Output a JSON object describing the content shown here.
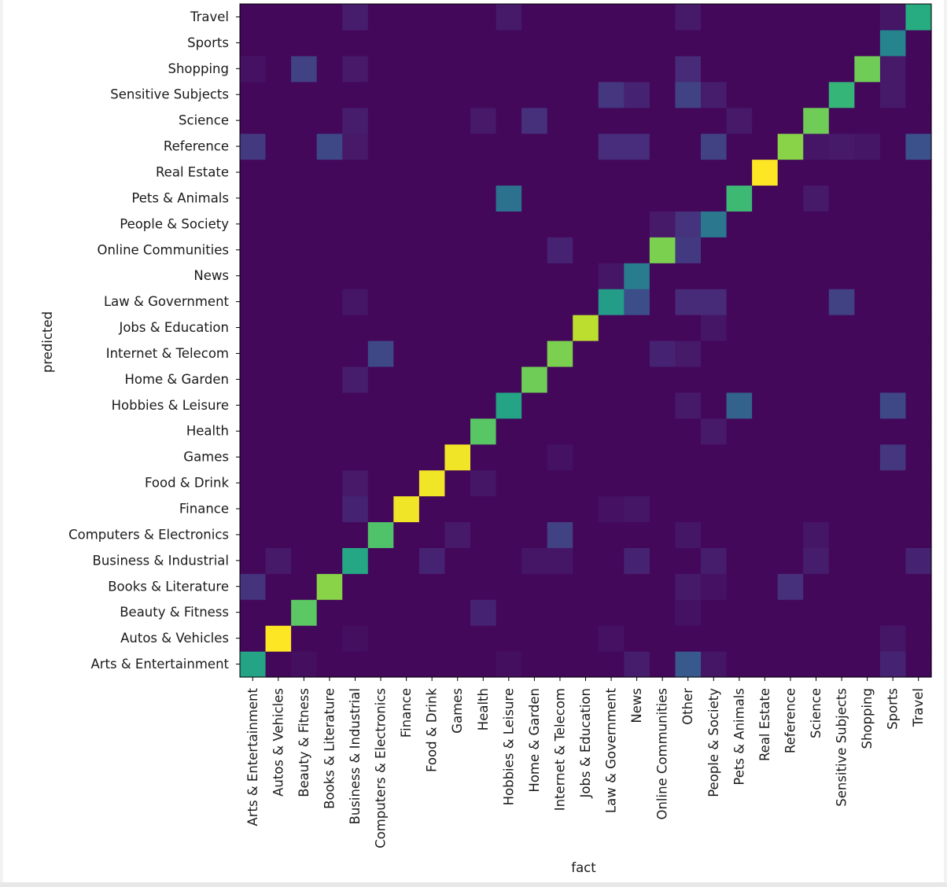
{
  "chart_data": {
    "type": "heatmap",
    "title": "",
    "xlabel": "fact",
    "ylabel": "predicted",
    "colormap": "viridis",
    "colormap_stops": [
      "#440154",
      "#472c7a",
      "#3b518b",
      "#2c718e",
      "#21908d",
      "#27ad81",
      "#5cc863",
      "#aadc32",
      "#fde725"
    ],
    "colorbar": false,
    "x_categories": [
      "Arts & Entertainment",
      "Autos & Vehicles",
      "Beauty & Fitness",
      "Books & Literature",
      "Business & Industrial",
      "Computers & Electronics",
      "Finance",
      "Food & Drink",
      "Games",
      "Health",
      "Hobbies & Leisure",
      "Home & Garden",
      "Internet & Telecom",
      "Jobs & Education",
      "Law & Government",
      "News",
      "Online Communities",
      "Other",
      "People & Society",
      "Pets & Animals",
      "Real Estate",
      "Reference",
      "Science",
      "Sensitive Subjects",
      "Shopping",
      "Sports",
      "Travel"
    ],
    "y_categories": [
      "Arts & Entertainment",
      "Autos & Vehicles",
      "Beauty & Fitness",
      "Books & Literature",
      "Business & Industrial",
      "Computers & Electronics",
      "Finance",
      "Food & Drink",
      "Games",
      "Health",
      "Hobbies & Leisure",
      "Home & Garden",
      "Internet & Telecom",
      "Jobs & Education",
      "Law & Government",
      "News",
      "Online Communities",
      "People & Society",
      "Pets & Animals",
      "Real Estate",
      "Reference",
      "Science",
      "Sensitive Subjects",
      "Shopping",
      "Sports",
      "Travel"
    ],
    "value_range": [
      0,
      1
    ],
    "base_value": 0.02,
    "cells": [
      [
        "Arts & Entertainment",
        "Arts & Entertainment",
        0.58
      ],
      [
        "Arts & Entertainment",
        "News",
        0.08
      ],
      [
        "Arts & Entertainment",
        "Other",
        0.28
      ],
      [
        "Arts & Entertainment",
        "People & Society",
        0.06
      ],
      [
        "Arts & Entertainment",
        "Sports",
        0.1
      ],
      [
        "Arts & Entertainment",
        "Beauty & Fitness",
        0.04
      ],
      [
        "Arts & Entertainment",
        "Hobbies & Leisure",
        0.04
      ],
      [
        "Autos & Vehicles",
        "Autos & Vehicles",
        1.0
      ],
      [
        "Autos & Vehicles",
        "Business & Industrial",
        0.04
      ],
      [
        "Autos & Vehicles",
        "Law & Government",
        0.05
      ],
      [
        "Autos & Vehicles",
        "Sports",
        0.06
      ],
      [
        "Beauty & Fitness",
        "Beauty & Fitness",
        0.75
      ],
      [
        "Beauty & Fitness",
        "Health",
        0.1
      ],
      [
        "Beauty & Fitness",
        "Other",
        0.05
      ],
      [
        "Books & Literature",
        "Books & Literature",
        0.82
      ],
      [
        "Books & Literature",
        "Arts & Entertainment",
        0.15
      ],
      [
        "Books & Literature",
        "Reference",
        0.14
      ],
      [
        "Books & Literature",
        "Other",
        0.07
      ],
      [
        "Books & Literature",
        "People & Society",
        0.05
      ],
      [
        "Business & Industrial",
        "Business & Industrial",
        0.6
      ],
      [
        "Business & Industrial",
        "Autos & Vehicles",
        0.07
      ],
      [
        "Business & Industrial",
        "Food & Drink",
        0.1
      ],
      [
        "Business & Industrial",
        "News",
        0.1
      ],
      [
        "Business & Industrial",
        "People & Society",
        0.08
      ],
      [
        "Business & Industrial",
        "Science",
        0.08
      ],
      [
        "Business & Industrial",
        "Travel",
        0.1
      ],
      [
        "Business & Industrial",
        "Home & Garden",
        0.06
      ],
      [
        "Business & Industrial",
        "Internet & Telecom",
        0.06
      ],
      [
        "Computers & Electronics",
        "Computers & Electronics",
        0.72
      ],
      [
        "Computers & Electronics",
        "Internet & Telecom",
        0.2
      ],
      [
        "Computers & Electronics",
        "Games",
        0.07
      ],
      [
        "Computers & Electronics",
        "Other",
        0.06
      ],
      [
        "Computers & Electronics",
        "Science",
        0.06
      ],
      [
        "Finance",
        "Finance",
        0.98
      ],
      [
        "Finance",
        "Business & Industrial",
        0.1
      ],
      [
        "Finance",
        "Law & Government",
        0.05
      ],
      [
        "Finance",
        "News",
        0.06
      ],
      [
        "Food & Drink",
        "Food & Drink",
        0.98
      ],
      [
        "Food & Drink",
        "Business & Industrial",
        0.07
      ],
      [
        "Food & Drink",
        "Health",
        0.06
      ],
      [
        "Games",
        "Games",
        0.98
      ],
      [
        "Games",
        "Sports",
        0.16
      ],
      [
        "Games",
        "Internet & Telecom",
        0.05
      ],
      [
        "Health",
        "Health",
        0.74
      ],
      [
        "Health",
        "People & Society",
        0.07
      ],
      [
        "Hobbies & Leisure",
        "Hobbies & Leisure",
        0.58
      ],
      [
        "Hobbies & Leisure",
        "Pets & Animals",
        0.32
      ],
      [
        "Hobbies & Leisure",
        "Sports",
        0.22
      ],
      [
        "Hobbies & Leisure",
        "Other",
        0.07
      ],
      [
        "Home & Garden",
        "Home & Garden",
        0.78
      ],
      [
        "Home & Garden",
        "Business & Industrial",
        0.08
      ],
      [
        "Internet & Telecom",
        "Internet & Telecom",
        0.8
      ],
      [
        "Internet & Telecom",
        "Computers & Electronics",
        0.22
      ],
      [
        "Internet & Telecom",
        "Online Communities",
        0.1
      ],
      [
        "Internet & Telecom",
        "Other",
        0.07
      ],
      [
        "Jobs & Education",
        "Jobs & Education",
        0.9
      ],
      [
        "Jobs & Education",
        "People & Society",
        0.06
      ],
      [
        "Law & Government",
        "Law & Government",
        0.55
      ],
      [
        "Law & Government",
        "News",
        0.24
      ],
      [
        "Law & Government",
        "Other",
        0.12
      ],
      [
        "Law & Government",
        "People & Society",
        0.12
      ],
      [
        "Law & Government",
        "Sensitive Subjects",
        0.2
      ],
      [
        "Law & Government",
        "Business & Industrial",
        0.06
      ],
      [
        "News",
        "News",
        0.42
      ],
      [
        "News",
        "Law & Government",
        0.06
      ],
      [
        "Online Communities",
        "Online Communities",
        0.8
      ],
      [
        "Online Communities",
        "Other",
        0.17
      ],
      [
        "Online Communities",
        "Internet & Telecom",
        0.1
      ],
      [
        "People & Society",
        "People & Society",
        0.4
      ],
      [
        "People & Society",
        "Other",
        0.15
      ],
      [
        "People & Society",
        "Online Communities",
        0.07
      ],
      [
        "Pets & Animals",
        "Pets & Animals",
        0.68
      ],
      [
        "Pets & Animals",
        "Hobbies & Leisure",
        0.38
      ],
      [
        "Pets & Animals",
        "Science",
        0.07
      ],
      [
        "Real Estate",
        "Real Estate",
        1.0
      ],
      [
        "Reference",
        "Reference",
        0.82
      ],
      [
        "Reference",
        "Arts & Entertainment",
        0.17
      ],
      [
        "Reference",
        "Books & Literature",
        0.22
      ],
      [
        "Reference",
        "Law & Government",
        0.13
      ],
      [
        "Reference",
        "News",
        0.13
      ],
      [
        "Reference",
        "People & Society",
        0.2
      ],
      [
        "Reference",
        "Travel",
        0.25
      ],
      [
        "Reference",
        "Business & Industrial",
        0.07
      ],
      [
        "Reference",
        "Science",
        0.06
      ],
      [
        "Reference",
        "Sensitive Subjects",
        0.07
      ],
      [
        "Reference",
        "Shopping",
        0.06
      ],
      [
        "Science",
        "Science",
        0.78
      ],
      [
        "Science",
        "Home & Garden",
        0.14
      ],
      [
        "Science",
        "Business & Industrial",
        0.08
      ],
      [
        "Science",
        "Health",
        0.07
      ],
      [
        "Science",
        "Pets & Animals",
        0.07
      ],
      [
        "Sensitive Subjects",
        "Sensitive Subjects",
        0.66
      ],
      [
        "Sensitive Subjects",
        "Law & Government",
        0.16
      ],
      [
        "Sensitive Subjects",
        "News",
        0.1
      ],
      [
        "Sensitive Subjects",
        "Other",
        0.2
      ],
      [
        "Sensitive Subjects",
        "People & Society",
        0.08
      ],
      [
        "Sensitive Subjects",
        "Sports",
        0.07
      ],
      [
        "Shopping",
        "Shopping",
        0.78
      ],
      [
        "Shopping",
        "Beauty & Fitness",
        0.2
      ],
      [
        "Shopping",
        "Other",
        0.12
      ],
      [
        "Shopping",
        "Business & Industrial",
        0.07
      ],
      [
        "Shopping",
        "Sports",
        0.07
      ],
      [
        "Shopping",
        "Arts & Entertainment",
        0.05
      ],
      [
        "Sports",
        "Sports",
        0.45
      ],
      [
        "Travel",
        "Travel",
        0.62
      ],
      [
        "Travel",
        "Business & Industrial",
        0.08
      ],
      [
        "Travel",
        "Other",
        0.07
      ],
      [
        "Travel",
        "Hobbies & Leisure",
        0.07
      ],
      [
        "Travel",
        "Sports",
        0.06
      ]
    ]
  }
}
